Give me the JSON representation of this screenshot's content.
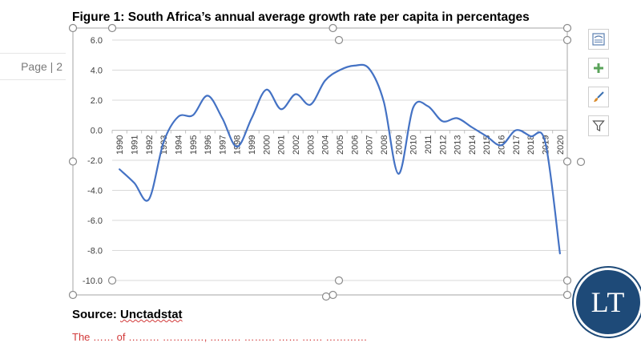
{
  "page_label": "Page | 2",
  "figure_title": "Figure 1: South Africa’s annual average growth rate per capita in percentages",
  "source_label": "Source:",
  "source_name": "Unctadstat",
  "red_text": "The …… of ……… …………, ……… ……… …… …… …………",
  "logo_text": "LT",
  "side_buttons": [
    {
      "name": "layout-options-button",
      "icon": "layout-icon"
    },
    {
      "name": "chart-elements-button",
      "icon": "plus-icon"
    },
    {
      "name": "chart-styles-button",
      "icon": "brush-icon"
    },
    {
      "name": "chart-filters-button",
      "icon": "filter-icon"
    }
  ],
  "colors": {
    "line": "#4472c4",
    "grid": "#d9d9d9",
    "accent_green": "#5aa35a",
    "logo_bg": "#1e4a78"
  },
  "chart_data": {
    "type": "line",
    "x": [
      "1990",
      "1991",
      "1992",
      "1993",
      "1994",
      "1995",
      "1996",
      "1997",
      "1998",
      "1999",
      "2000",
      "2001",
      "2002",
      "2003",
      "2004",
      "2005",
      "2006",
      "2007",
      "2008",
      "2009",
      "2010",
      "2011",
      "2012",
      "2013",
      "2014",
      "2015",
      "2016",
      "2017",
      "2018",
      "2019",
      "2020"
    ],
    "series": [
      {
        "values": [
          -2.6,
          -3.5,
          -4.6,
          -0.8,
          0.9,
          1.0,
          2.3,
          0.8,
          -1.1,
          0.8,
          2.7,
          1.4,
          2.4,
          1.7,
          3.3,
          4.0,
          4.3,
          4.1,
          1.9,
          -2.9,
          1.5,
          1.6,
          0.6,
          0.8,
          0.2,
          -0.4,
          -1.0,
          0.0,
          -0.4,
          -0.8,
          -8.2
        ]
      }
    ],
    "yticks": [
      "6.0",
      "4.0",
      "2.0",
      "0.0",
      "-2.0",
      "-4.0",
      "-6.0",
      "-8.0",
      "-10.0"
    ],
    "ylim": [
      -10,
      6
    ],
    "grid": true,
    "title": "Figure 1: South Africa’s annual average growth rate per capita in percentages"
  }
}
